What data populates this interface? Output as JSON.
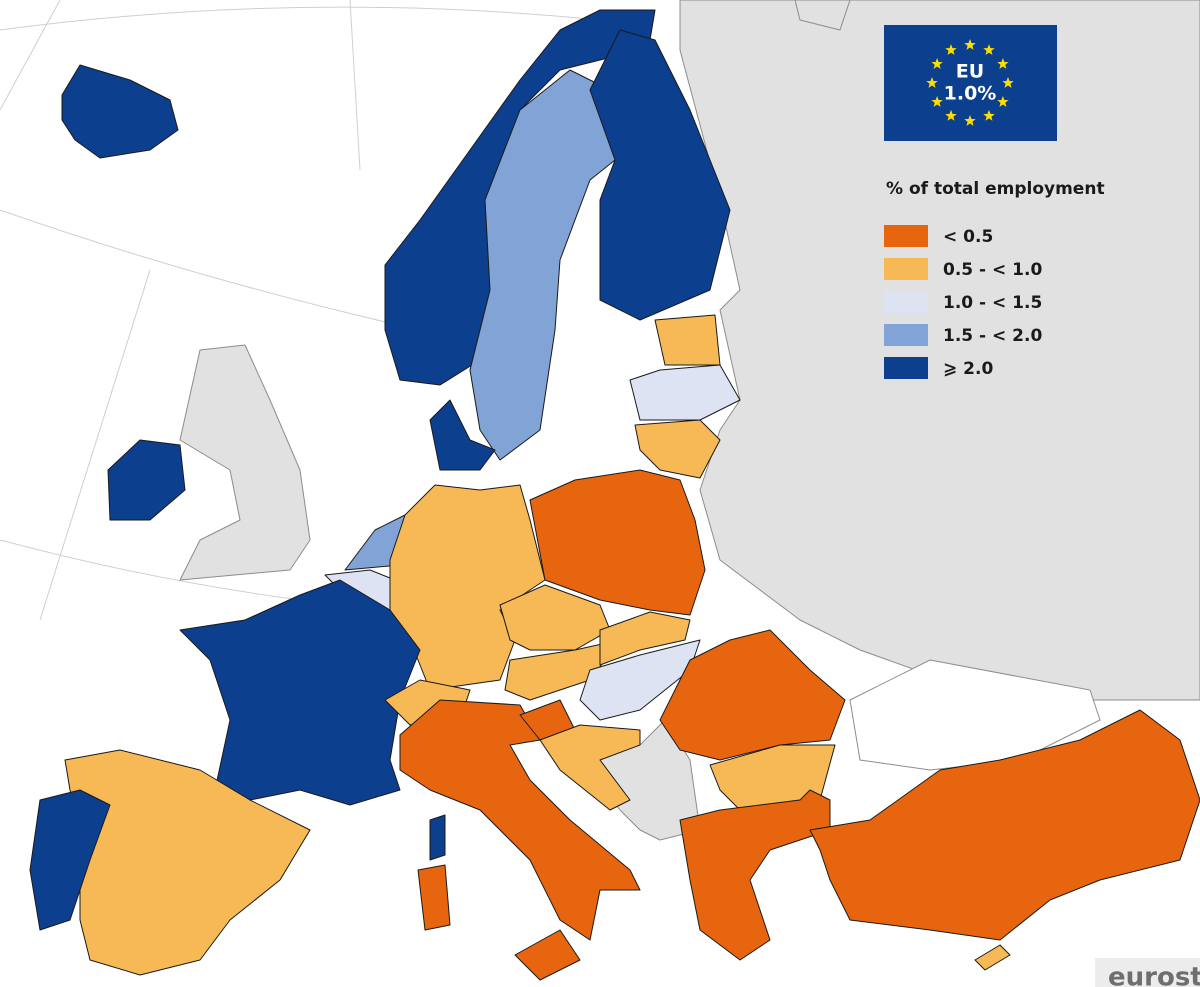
{
  "eu_box": {
    "label": "EU",
    "value": "1.0%"
  },
  "legend": {
    "title": "% of total employment",
    "items": [
      {
        "label": "< 0.5",
        "color": "#e8650f"
      },
      {
        "label": "0.5 - < 1.0",
        "color": "#f7b955"
      },
      {
        "label": "1.0 - < 1.5",
        "color": "#dde3f2"
      },
      {
        "label": "1.5 - < 2.0",
        "color": "#82a3d6"
      },
      {
        "label": "⩾ 2.0",
        "color": "#0d3f8f"
      }
    ]
  },
  "logo": "eurost"
}
